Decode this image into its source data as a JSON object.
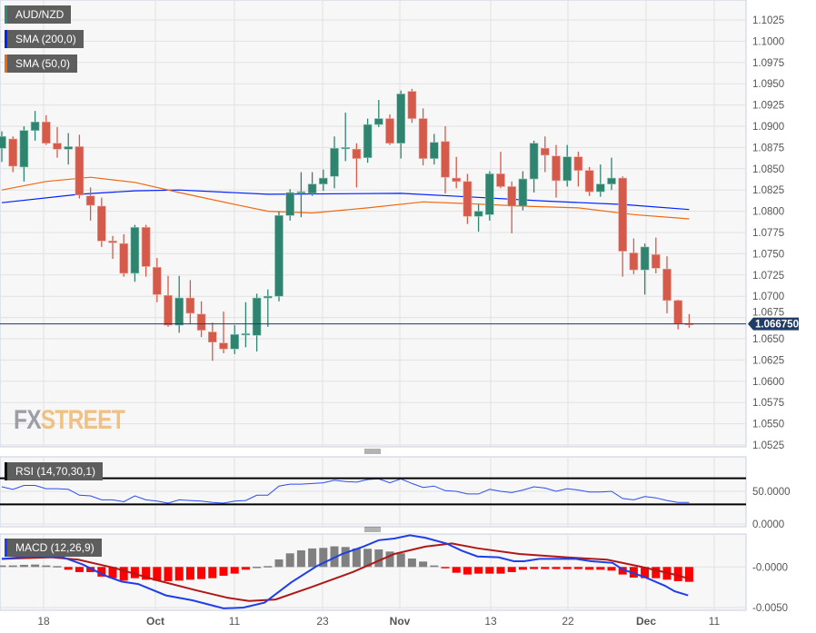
{
  "legends": {
    "symbol": {
      "label": "AUD/NZD",
      "color": "#2e8b73"
    },
    "sma200": {
      "label": "SMA (200,0)",
      "color": "#0022ff"
    },
    "sma50": {
      "label": "SMA (50,0)",
      "color": "#ee6a10"
    },
    "rsi": {
      "label": "RSI (14,70,30,1)",
      "color": "#111111"
    },
    "macd": {
      "label": "MACD (12,26,9)",
      "color": "#1f3de8"
    }
  },
  "logo": {
    "part1": "FX",
    "part2": "STREET"
  },
  "colors": {
    "up": "#2f8470",
    "down": "#d65a4a",
    "price_line": "#1f3b66",
    "rsi_line": "#2a4df0",
    "macd_line": "#1e3ee8",
    "signal_line": "#b01818",
    "hist_pos": "#808080",
    "hist_neg": "#ff0000"
  },
  "chart_data": [
    {
      "type": "candlestick",
      "title": "AUD/NZD",
      "current_price": 1.06675,
      "current_price_label": "1.066750",
      "y_ticks": [
        "1.1025",
        "1.1000",
        "1.0975",
        "1.0950",
        "1.0925",
        "1.0900",
        "1.0875",
        "1.0850",
        "1.0825",
        "1.0800",
        "1.0775",
        "1.0750",
        "1.0725",
        "1.0700",
        "1.0675",
        "1.0650",
        "1.0625",
        "1.0600",
        "1.0575",
        "1.0550",
        "1.0525"
      ],
      "ylim": [
        1.0525,
        1.1025
      ],
      "x_ticks": [
        "18",
        "Oct",
        "11",
        "23",
        "Nov",
        "13",
        "22",
        "Dec",
        "11"
      ],
      "ohlc": [
        [
          1.0874,
          1.0894,
          1.0858,
          1.0888
        ],
        [
          1.0885,
          1.0888,
          1.0846,
          1.0853
        ],
        [
          1.0852,
          1.09,
          1.0835,
          1.0895
        ],
        [
          1.0895,
          1.0918,
          1.0883,
          1.0905
        ],
        [
          1.0905,
          1.0913,
          1.0878,
          1.088
        ],
        [
          1.088,
          1.0899,
          1.0863,
          1.0873
        ],
        [
          1.0873,
          1.0892,
          1.0855,
          1.0876
        ],
        [
          1.0876,
          1.089,
          1.0815,
          1.0819
        ],
        [
          1.0818,
          1.0828,
          1.0789,
          1.0807
        ],
        [
          1.0806,
          1.0816,
          1.0758,
          1.0765
        ],
        [
          1.0765,
          1.0771,
          1.0744,
          1.0763
        ],
        [
          1.0762,
          1.0773,
          1.0723,
          1.0727
        ],
        [
          1.0727,
          1.0784,
          1.0717,
          1.0781
        ],
        [
          1.0781,
          1.0784,
          1.0723,
          1.0735
        ],
        [
          1.0734,
          1.0745,
          1.0693,
          1.0702
        ],
        [
          1.0701,
          1.0724,
          1.0664,
          1.0666
        ],
        [
          1.0666,
          1.0724,
          1.0657,
          1.0698
        ],
        [
          1.0698,
          1.0719,
          1.0667,
          1.068
        ],
        [
          1.0679,
          1.0694,
          1.0652,
          1.066
        ],
        [
          1.0658,
          1.0669,
          1.0624,
          1.0646
        ],
        [
          1.0645,
          1.0682,
          1.0633,
          1.0638
        ],
        [
          1.0638,
          1.0666,
          1.0632,
          1.0655
        ],
        [
          1.0655,
          1.0693,
          1.064,
          1.0656
        ],
        [
          1.0654,
          1.0703,
          1.0635,
          1.0698
        ],
        [
          1.0698,
          1.0708,
          1.0664,
          1.07
        ],
        [
          1.07,
          1.08,
          1.0694,
          1.0795
        ],
        [
          1.0795,
          1.0826,
          1.0789,
          1.0822
        ],
        [
          1.0822,
          1.0846,
          1.0793,
          1.0823
        ],
        [
          1.0821,
          1.0846,
          1.0818,
          1.0832
        ],
        [
          1.0832,
          1.0849,
          1.0824,
          1.0839
        ],
        [
          1.0841,
          1.0888,
          1.0827,
          1.0874
        ],
        [
          1.0874,
          1.0916,
          1.0859,
          1.0875
        ],
        [
          1.0873,
          1.088,
          1.0828,
          1.0862
        ],
        [
          1.0863,
          1.0909,
          1.0857,
          1.0902
        ],
        [
          1.0902,
          1.0931,
          1.0899,
          1.0909
        ],
        [
          1.0909,
          1.0914,
          1.0878,
          1.088
        ],
        [
          1.088,
          1.0942,
          1.0862,
          1.0938
        ],
        [
          1.0941,
          1.0944,
          1.0904,
          1.0909
        ],
        [
          1.0909,
          1.0921,
          1.0854,
          1.0862
        ],
        [
          1.0862,
          1.0891,
          1.0855,
          1.0881
        ],
        [
          1.0882,
          1.09,
          1.0821,
          1.084
        ],
        [
          1.0839,
          1.0864,
          1.0827,
          1.0835
        ],
        [
          1.0835,
          1.0844,
          1.0785,
          1.0794
        ],
        [
          1.0794,
          1.0808,
          1.0776,
          1.08
        ],
        [
          1.0796,
          1.0847,
          1.0789,
          1.0844
        ],
        [
          1.0844,
          1.087,
          1.0827,
          1.0829
        ],
        [
          1.0829,
          1.0835,
          1.0774,
          1.0806
        ],
        [
          1.0806,
          1.0847,
          1.0801,
          1.0838
        ],
        [
          1.0838,
          1.0883,
          1.0822,
          1.088
        ],
        [
          1.0874,
          1.0888,
          1.0846,
          1.0866
        ],
        [
          1.0865,
          1.0878,
          1.0816,
          1.0836
        ],
        [
          1.0836,
          1.0878,
          1.0829,
          1.0864
        ],
        [
          1.0864,
          1.087,
          1.0829,
          1.0848
        ],
        [
          1.0848,
          1.0852,
          1.0818,
          1.0823
        ],
        [
          1.0823,
          1.0855,
          1.0817,
          1.0832
        ],
        [
          1.0832,
          1.0863,
          1.0825,
          1.0839
        ],
        [
          1.0839,
          1.0841,
          1.0723,
          1.0753
        ],
        [
          1.0751,
          1.0768,
          1.0726,
          1.0731
        ],
        [
          1.0731,
          1.0762,
          1.0702,
          1.0758
        ],
        [
          1.0749,
          1.0769,
          1.0727,
          1.0733
        ],
        [
          1.0732,
          1.0747,
          1.068,
          1.0695
        ],
        [
          1.0695,
          1.0696,
          1.0661,
          1.0668
        ],
        [
          1.0668,
          1.0679,
          1.0663,
          1.06675
        ]
      ],
      "sma200": [
        [
          0,
          1.081
        ],
        [
          7,
          1.082
        ],
        [
          12,
          1.0824
        ],
        [
          16,
          1.0825
        ],
        [
          24,
          1.082
        ],
        [
          36,
          1.0821
        ],
        [
          42,
          1.0817
        ],
        [
          49,
          1.0812
        ],
        [
          56,
          1.0808
        ],
        [
          62,
          1.0802
        ]
      ],
      "sma50": [
        [
          0,
          1.0825
        ],
        [
          4,
          1.0835
        ],
        [
          8,
          1.084
        ],
        [
          12,
          1.0834
        ],
        [
          16,
          1.0822
        ],
        [
          21,
          1.0808
        ],
        [
          24,
          1.08
        ],
        [
          28,
          1.0798
        ],
        [
          33,
          1.0804
        ],
        [
          38,
          1.0811
        ],
        [
          42,
          1.0809
        ],
        [
          47,
          1.0806
        ],
        [
          52,
          1.0804
        ],
        [
          57,
          1.0796
        ],
        [
          62,
          1.0791
        ]
      ]
    },
    {
      "type": "line",
      "title": "RSI (14,70,30,1)",
      "y_ticks": [
        "50.0000",
        "0.0000"
      ],
      "ylim": [
        0,
        100
      ],
      "levels": [
        70,
        30
      ],
      "values": [
        57,
        53,
        59,
        59,
        54,
        54,
        53,
        44,
        43,
        37,
        37,
        34,
        43,
        37,
        35,
        32,
        37,
        36,
        35,
        33,
        32,
        35,
        36,
        44,
        44,
        58,
        61,
        61,
        62,
        63,
        67,
        65,
        64,
        68,
        69,
        63,
        69,
        62,
        56,
        58,
        51,
        50,
        46,
        46,
        53,
        50,
        48,
        52,
        57,
        55,
        50,
        54,
        52,
        49,
        49,
        50,
        39,
        37,
        42,
        40,
        36,
        33,
        33
      ]
    },
    {
      "type": "bar+line",
      "title": "MACD (12,26,9)",
      "y_ticks": [
        "-0.0000",
        "-0.0050"
      ],
      "macd": [
        [
          0,
          0.001
        ],
        [
          2.6,
          0.0013
        ],
        [
          5.5,
          0.0012
        ],
        [
          7.3,
          0.0003
        ],
        [
          9.2,
          -0.001
        ],
        [
          10.8,
          -0.0018
        ],
        [
          12.3,
          -0.0021
        ],
        [
          14.8,
          -0.0035
        ],
        [
          17.2,
          -0.0041
        ],
        [
          20,
          -0.0051
        ],
        [
          21.8,
          -0.005
        ],
        [
          23.7,
          -0.0044
        ],
        [
          26.1,
          -0.0019
        ],
        [
          28.4,
          0.0001
        ],
        [
          30.7,
          0.0016
        ],
        [
          32.6,
          0.0025
        ],
        [
          34,
          0.0033
        ],
        [
          35.4,
          0.0035
        ],
        [
          36.8,
          0.0039
        ],
        [
          38.2,
          0.0036
        ],
        [
          40.1,
          0.0029
        ],
        [
          41.5,
          0.002
        ],
        [
          42.9,
          0.0013
        ],
        [
          44.8,
          0.0012
        ],
        [
          46.2,
          0.0007
        ],
        [
          47.1,
          0.0007
        ],
        [
          48.5,
          0.001
        ],
        [
          50,
          0.001
        ],
        [
          51.8,
          0.001
        ],
        [
          53.2,
          0.0007
        ],
        [
          55.1,
          0.0005
        ],
        [
          56,
          -0.0003
        ],
        [
          57.9,
          -0.0012
        ],
        [
          59.8,
          -0.0023
        ],
        [
          60.7,
          -0.003
        ],
        [
          61.9,
          -0.0035
        ]
      ],
      "signal": [
        [
          0,
          0.001
        ],
        [
          4.5,
          0.0012
        ],
        [
          6.9,
          0.0009
        ],
        [
          10.1,
          -0.0001
        ],
        [
          13.9,
          -0.0016
        ],
        [
          17.6,
          -0.0029
        ],
        [
          20.4,
          -0.0038
        ],
        [
          22.3,
          -0.0042
        ],
        [
          24.7,
          -0.004
        ],
        [
          27.9,
          -0.0025
        ],
        [
          31.7,
          -0.0006
        ],
        [
          35.4,
          0.0016
        ],
        [
          38.2,
          0.0025
        ],
        [
          40.6,
          0.0029
        ],
        [
          42.9,
          0.0023
        ],
        [
          46.7,
          0.0016
        ],
        [
          50.9,
          0.0012
        ],
        [
          54.6,
          0.0009
        ],
        [
          57.4,
          0.0001
        ],
        [
          60.3,
          -0.0008
        ],
        [
          61.9,
          -0.0014
        ]
      ],
      "histogram": [
        0.00019,
        0.00019,
        0.00026,
        0.0003,
        0.00019,
        0.00011,
        -0.00034,
        -0.00063,
        -0.00063,
        -0.00119,
        -0.00138,
        -0.00168,
        -0.00138,
        -0.00157,
        -0.00168,
        -0.00175,
        -0.00168,
        -0.00157,
        -0.00149,
        -0.00138,
        -0.00108,
        -0.00082,
        -0.00034,
        3e-05,
        0.00011,
        0.00093,
        0.00168,
        0.00205,
        0.00228,
        0.00235,
        0.00254,
        0.00246,
        0.00228,
        0.00224,
        0.00216,
        0.0019,
        0.00168,
        0.00104,
        0.00067,
        0.00019,
        -7e-05,
        -0.00071,
        -0.00093,
        -0.00082,
        -0.00082,
        -0.00082,
        -0.00063,
        -0.00034,
        -0.00026,
        -0.00026,
        -0.00026,
        -0.00026,
        -0.00026,
        -0.00034,
        -0.00034,
        -0.00045,
        -0.00093,
        -0.00131,
        -0.00138,
        -0.00138,
        -0.00157,
        -0.00175,
        -0.00183
      ]
    }
  ]
}
